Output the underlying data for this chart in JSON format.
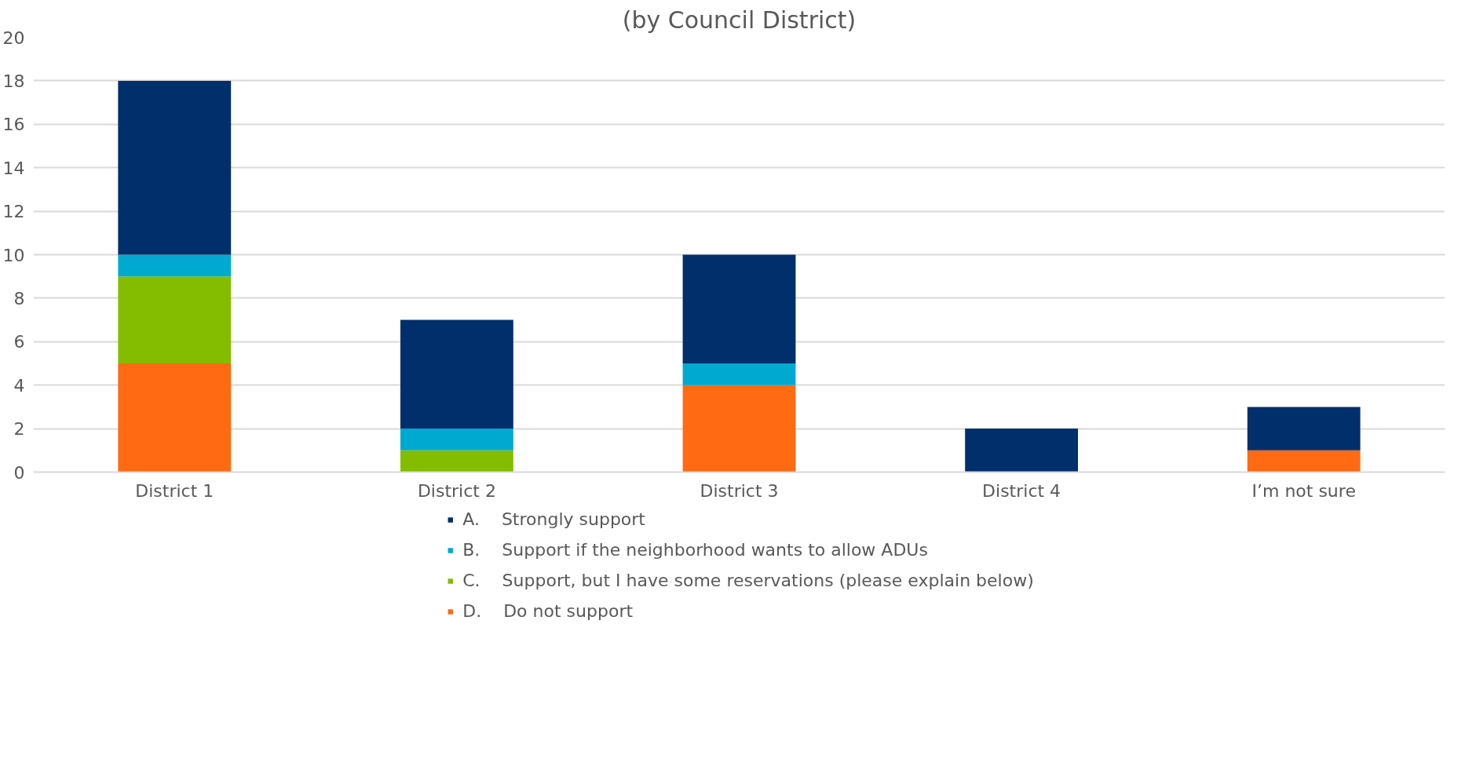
{
  "chart_data": {
    "type": "bar",
    "title": "(by Council District)",
    "stacked": true,
    "categories": [
      "District 1",
      "District 2",
      "District 3",
      "District 4",
      "I’m not sure"
    ],
    "series": [
      {
        "name": "D.    Do not support",
        "color": "#ff6a13",
        "values": [
          5,
          0,
          4,
          0,
          1
        ]
      },
      {
        "name": "C.    Support, but I have some reservations (please explain below)",
        "color": "#84bd00",
        "values": [
          4,
          1,
          0,
          0,
          0
        ]
      },
      {
        "name": "B.    Support if the neighborhood wants to allow ADUs",
        "color": "#00a9d0",
        "values": [
          1,
          1,
          1,
          0,
          0
        ]
      },
      {
        "name": "A.    Strongly support",
        "color": "#002f6c",
        "values": [
          8,
          5,
          5,
          2,
          2
        ]
      }
    ],
    "ylim": [
      0,
      20
    ],
    "yticks": [
      0,
      2,
      4,
      6,
      8,
      10,
      12,
      14,
      16,
      18,
      20
    ],
    "grid": "y",
    "legend": "bottom"
  }
}
